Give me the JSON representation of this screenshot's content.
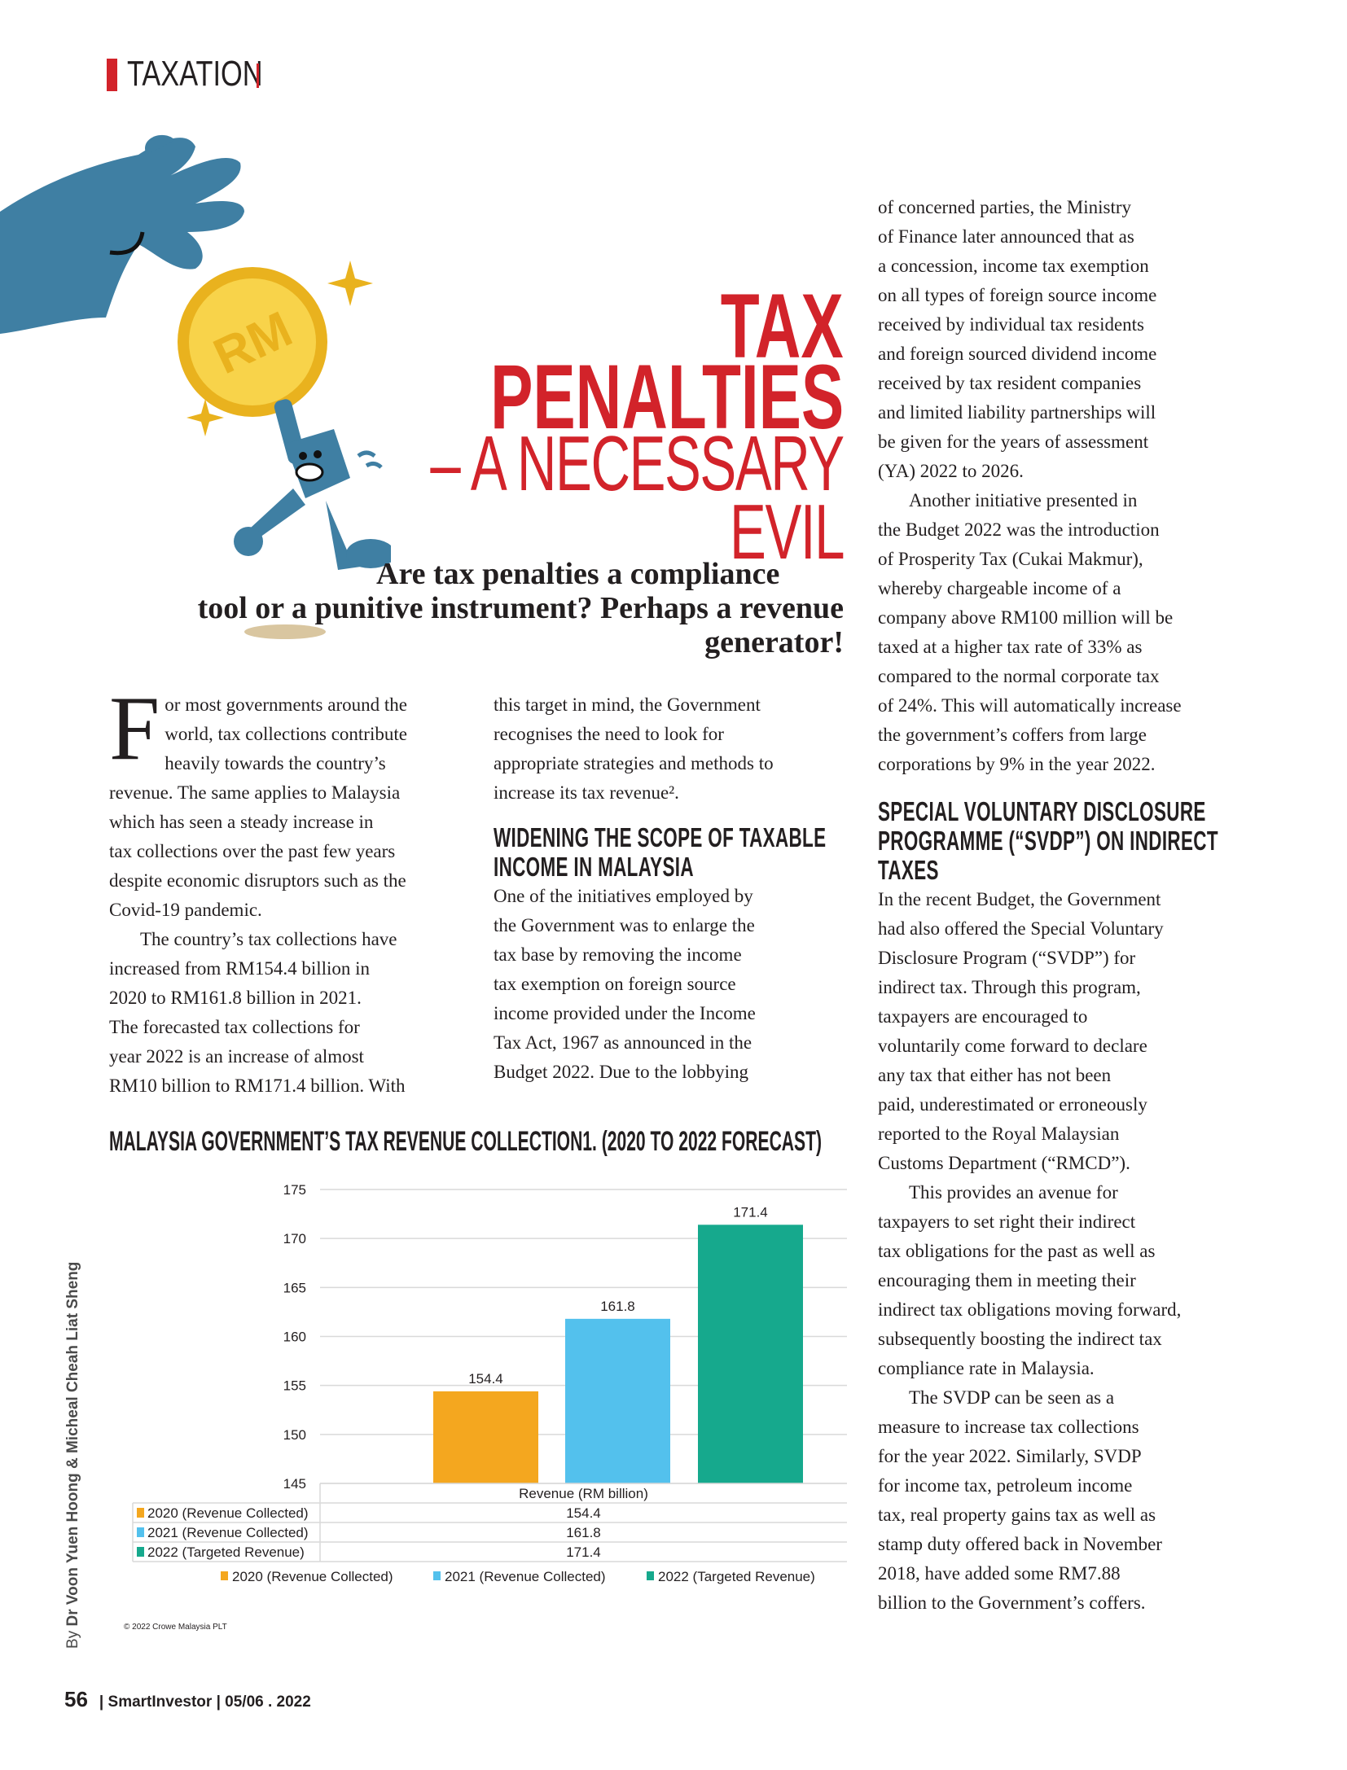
{
  "section": {
    "label": "TAXATION"
  },
  "headline": {
    "line1": "TAX",
    "line2": "PENALTIES",
    "line3": "– A NECESSARY",
    "line4": "EVIL"
  },
  "subtitle": {
    "lines": [
      "Are tax penalties a compliance",
      "tool or a punitive instrument? Perhaps a revenue",
      "generator!"
    ]
  },
  "illustration": {
    "coin_text": "RM"
  },
  "byline": {
    "prefix": "By",
    "authors": "Dr Voon Yuen Hoong & Micheal Cheah Liat Sheng"
  },
  "columns": {
    "col1": {
      "drop_cap": "F",
      "p1": [
        "or most governments around the",
        "world, tax collections contribute",
        "heavily towards the country’s",
        "revenue. The same applies to Malaysia",
        "which has seen a steady increase in",
        "tax collections over the past few years",
        "despite economic disruptors such as the",
        "Covid-19 pandemic."
      ],
      "p2": [
        "The country’s tax collections have",
        "increased from RM154.4 billion in",
        "2020 to RM161.8 billion in 2021.",
        "The forecasted tax collections for",
        "year 2022 is an increase of almost",
        "RM10 billion to RM171.4 billion. With"
      ]
    },
    "col2": {
      "p1": [
        "this target in mind, the Government",
        "recognises the need to look for",
        "appropriate strategies and methods to",
        "increase its tax revenue²."
      ],
      "heading": [
        "WIDENING THE SCOPE OF TAXABLE",
        "INCOME IN MALAYSIA"
      ],
      "p2": [
        "One of the initiatives employed by",
        "the Government was to enlarge the",
        "tax base by removing the income",
        "tax exemption on foreign source",
        "income provided under the Income",
        "Tax Act, 1967 as announced in the",
        "Budget 2022. Due to the lobbying"
      ]
    },
    "col3": {
      "p1": [
        "of concerned parties, the Ministry",
        "of Finance later announced that as",
        "a concession, income tax exemption",
        "on all types of foreign source income",
        "received by individual tax residents",
        "and foreign sourced dividend income",
        "received by tax resident companies",
        "and limited liability partnerships will",
        "be given for the years of assessment",
        "(YA) 2022 to 2026."
      ],
      "p2": [
        "Another initiative presented in",
        "the Budget 2022 was the introduction",
        "of Prosperity Tax (Cukai Makmur),",
        "whereby chargeable income of a",
        "company above RM100 million will be",
        "taxed at a higher tax rate of 33% as",
        "compared to the normal corporate tax",
        "of 24%. This will automatically increase",
        "the government’s coffers from large",
        "corporations by 9% in the year 2022."
      ],
      "heading": [
        "SPECIAL VOLUNTARY DISCLOSURE",
        "PROGRAMME (“SVDP”) ON INDIRECT",
        "TAXES"
      ],
      "p3": [
        "In the recent Budget, the Government",
        "had also offered the Special Voluntary",
        "Disclosure Program (“SVDP”) for",
        "indirect tax. Through this program,",
        "taxpayers are encouraged to",
        "voluntarily come forward to declare",
        "any tax that either has not been",
        "paid, underestimated or erroneously",
        "reported to the Royal Malaysian",
        "Customs Department (“RMCD”)."
      ],
      "p4": [
        "This provides an avenue for",
        "taxpayers to set right their indirect",
        "tax obligations for the past as well as",
        "encouraging them in meeting their",
        "indirect tax obligations moving forward,",
        "subsequently boosting the indirect tax",
        "compliance rate in Malaysia."
      ],
      "p5": [
        "The SVDP can be seen as a",
        "measure to increase tax collections",
        "for the year 2022. Similarly, SVDP",
        "for income tax, petroleum income",
        "tax, real property gains tax as well as",
        "stamp duty offered back in November",
        "2018, have added some RM7.88",
        "billion to the Government’s coffers."
      ]
    }
  },
  "chart_data": {
    "type": "bar",
    "title": "MALAYSIA GOVERNMENT’S TAX REVENUE COLLECTION1. (2020 TO 2022 FORECAST)",
    "xlabel": "Revenue (RM billion)",
    "ylabel": "",
    "ylim": [
      145,
      175
    ],
    "yticks": [
      145,
      150,
      155,
      160,
      165,
      170,
      175
    ],
    "grid": true,
    "legend": "bottom",
    "series": [
      {
        "name": "2020 (Revenue Collected)",
        "values": [
          154.4
        ],
        "color": "#f4a71f"
      },
      {
        "name": "2021 (Revenue Collected)",
        "values": [
          161.8
        ],
        "color": "#53c1ed"
      },
      {
        "name": "2022 (Targeted Revenue)",
        "values": [
          171.4
        ],
        "color": "#16a98d"
      }
    ],
    "data_table": true,
    "source": "© 2022 Crowe Malaysia PLT"
  },
  "footer": {
    "page": "56",
    "publication": "| SmartInvestor | 05/06 . 2022"
  },
  "colors": {
    "accent": "#d2232a",
    "illustration_blue": "#3f7fa3",
    "coin": "#f5c424"
  }
}
